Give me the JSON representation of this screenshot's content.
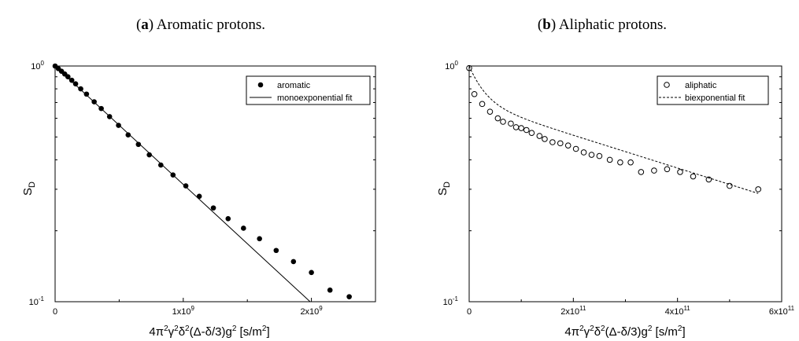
{
  "chart_data": [
    {
      "type": "scatter",
      "panel_letter": "a",
      "caption": "Aromatic protons.",
      "xlabel": "4π²γ²δ²(Δ-δ/3)g² [s/m²]",
      "ylabel": "S_D",
      "xlim": [
        0,
        2500000000.0
      ],
      "ylim": [
        0.1,
        1.0
      ],
      "yscale": "log",
      "x_ticks": [
        {
          "value": 0,
          "mantissa": "0",
          "exp": ""
        },
        {
          "value": 1000000000.0,
          "mantissa": "1x10",
          "exp": "9"
        },
        {
          "value": 2000000000.0,
          "mantissa": "2x10",
          "exp": "9"
        }
      ],
      "y_ticks": [
        {
          "value": 1.0,
          "mantissa": "10",
          "exp": "0"
        },
        {
          "value": 0.1,
          "mantissa": "10",
          "exp": "-1"
        }
      ],
      "legend_position": "top-right",
      "series": [
        {
          "name": "aromatic",
          "marker": "filled-circle",
          "x": [
            0,
            25000000.0,
            50000000.0,
            75000000.0,
            100000000.0,
            130000000.0,
            160000000.0,
            200000000.0,
            245000000.0,
            305000000.0,
            360000000.0,
            425000000.0,
            495000000.0,
            570000000.0,
            650000000.0,
            735000000.0,
            825000000.0,
            920000000.0,
            1020000000.0,
            1125000000.0,
            1235000000.0,
            1350000000.0,
            1470000000.0,
            1595000000.0,
            1725000000.0,
            1860000000.0,
            2000000000.0,
            2145000000.0,
            2295000000.0
          ],
          "y": [
            1.0,
            0.975,
            0.95,
            0.925,
            0.9,
            0.87,
            0.84,
            0.8,
            0.76,
            0.705,
            0.66,
            0.61,
            0.56,
            0.51,
            0.465,
            0.42,
            0.38,
            0.345,
            0.31,
            0.28,
            0.25,
            0.225,
            0.205,
            0.185,
            0.165,
            0.148,
            0.133,
            0.112,
            0.105
          ]
        },
        {
          "name": "monoexponential fit",
          "line": "solid",
          "x": [
            0,
            1990000000.0
          ],
          "y": [
            1.0,
            0.1
          ]
        }
      ]
    },
    {
      "type": "scatter",
      "panel_letter": "b",
      "caption": "Aliphatic protons.",
      "xlabel": "4π²γ²δ²(Δ-δ/3)g² [s/m²]",
      "ylabel": "S_D",
      "xlim": [
        0,
        600000000000.0
      ],
      "ylim": [
        0.1,
        1.0
      ],
      "yscale": "log",
      "x_ticks": [
        {
          "value": 0,
          "mantissa": "0",
          "exp": ""
        },
        {
          "value": 200000000000.0,
          "mantissa": "2x10",
          "exp": "11"
        },
        {
          "value": 400000000000.0,
          "mantissa": "4x10",
          "exp": "11"
        },
        {
          "value": 600000000000.0,
          "mantissa": "6x10",
          "exp": "11"
        }
      ],
      "y_ticks": [
        {
          "value": 1.0,
          "mantissa": "10",
          "exp": "0"
        },
        {
          "value": 0.1,
          "mantissa": "10",
          "exp": "-1"
        }
      ],
      "legend_position": "top-right",
      "series": [
        {
          "name": "aliphatic",
          "marker": "open-circle",
          "x": [
            0,
            10000000000.0,
            25000000000.0,
            40000000000.0,
            55000000000.0,
            65000000000.0,
            80000000000.0,
            90000000000.0,
            100000000000.0,
            110000000000.0,
            120000000000.0,
            135000000000.0,
            145000000000.0,
            160000000000.0,
            175000000000.0,
            190000000000.0,
            205000000000.0,
            220000000000.0,
            235000000000.0,
            250000000000.0,
            270000000000.0,
            290000000000.0,
            310000000000.0,
            330000000000.0,
            355000000000.0,
            380000000000.0,
            405000000000.0,
            430000000000.0,
            460000000000.0,
            500000000000.0,
            555000000000.0
          ],
          "y": [
            0.98,
            0.76,
            0.69,
            0.64,
            0.6,
            0.58,
            0.57,
            0.55,
            0.545,
            0.535,
            0.52,
            0.505,
            0.49,
            0.475,
            0.47,
            0.46,
            0.445,
            0.43,
            0.42,
            0.415,
            0.4,
            0.39,
            0.39,
            0.355,
            0.36,
            0.365,
            0.355,
            0.34,
            0.33,
            0.31,
            0.3
          ]
        },
        {
          "name": "biexponential fit",
          "line": "dashed",
          "model": {
            "a1": 0.3,
            "k1": 3.5e-11,
            "a2": 0.7,
            "k2": 1.6e-12
          }
        }
      ]
    }
  ]
}
